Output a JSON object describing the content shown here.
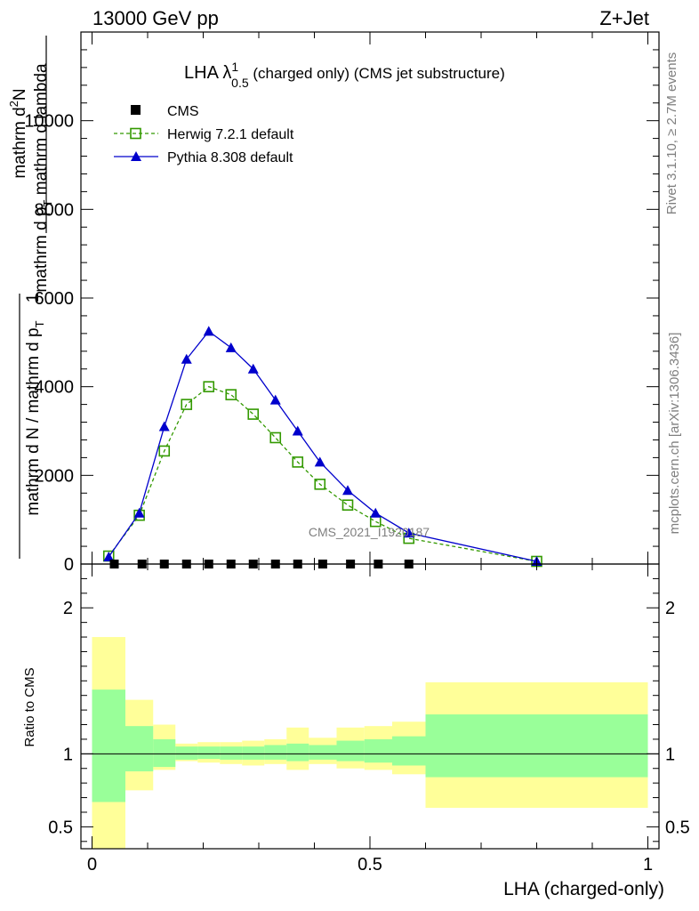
{
  "header": {
    "left": "13000 GeV pp",
    "right": "Z+Jet"
  },
  "main": {
    "title_main": "LHA λ",
    "title_sup": "1",
    "title_sub": "0.5",
    "title_rest": " (charged only) (CMS jet substructure)",
    "ylabel_line1": "mathrm d",
    "ylabel_sup": "2",
    "ylabel_line1b": "N",
    "ylabel_line2": "mathrm d p",
    "ylabel_line2_sub": "T",
    "ylabel_line2b": " mathrm d lambda",
    "ylabel_prefix": "1",
    "ylabel_denom": "mathrm d N / mathrm d p",
    "ylabel_denom_sub": "T"
  },
  "ratio": {
    "ylabel": "Ratio to CMS"
  },
  "xaxis": {
    "label": "LHA (charged-only)"
  },
  "side": {
    "rivet": "Rivet 3.1.10, ≥ 2.7M events",
    "mcplots": "mcplots.cern.ch [arXiv:1306.3436]"
  },
  "watermark": "CMS_2021_I1920187",
  "colors": {
    "herwig": "#339900",
    "pythia": "#0000cc",
    "band_inner": "#99ff99",
    "band_outer": "#ffff99"
  },
  "chart_data": [
    {
      "type": "line",
      "xlim": [
        -0.02,
        1.02
      ],
      "ylim": [
        0,
        12000
      ],
      "yticks": [
        0,
        2000,
        4000,
        6000,
        8000,
        10000
      ],
      "ytick_labels": [
        "0",
        "2000",
        "4000",
        "6000",
        "8000",
        "10000"
      ],
      "legend_position": "top-left",
      "series": [
        {
          "name": "CMS",
          "marker": "square",
          "x": [
            0.04,
            0.09,
            0.13,
            0.17,
            0.21,
            0.25,
            0.29,
            0.33,
            0.37,
            0.415,
            0.465,
            0.515,
            0.57
          ],
          "y": [
            0,
            0,
            0,
            0,
            0,
            0,
            0,
            0,
            0,
            0,
            0,
            0,
            0
          ]
        },
        {
          "name": "Herwig 7.2.1 default",
          "marker": "open-square",
          "style": "dashed",
          "x": [
            0.03,
            0.085,
            0.13,
            0.17,
            0.21,
            0.25,
            0.29,
            0.33,
            0.37,
            0.41,
            0.46,
            0.51,
            0.57,
            0.8
          ],
          "y": [
            180,
            1100,
            2550,
            3600,
            4000,
            3820,
            3380,
            2850,
            2300,
            1800,
            1330,
            960,
            580,
            60
          ]
        },
        {
          "name": "Pythia 8.308 default",
          "marker": "filled-triangle",
          "style": "solid",
          "x": [
            0.03,
            0.085,
            0.13,
            0.17,
            0.21,
            0.25,
            0.29,
            0.33,
            0.37,
            0.41,
            0.46,
            0.51,
            0.57,
            0.8
          ],
          "y": [
            160,
            1150,
            3100,
            4620,
            5250,
            4880,
            4400,
            3700,
            3000,
            2300,
            1660,
            1150,
            700,
            60
          ]
        }
      ]
    },
    {
      "type": "area",
      "xlim": [
        -0.02,
        1.02
      ],
      "ylim": [
        0.35,
        2.3
      ],
      "yticks": [
        0.5,
        1,
        2
      ],
      "ytick_labels": [
        "0.5",
        "1",
        "2"
      ],
      "xticks": [
        0,
        0.5,
        1
      ],
      "xtick_labels": [
        "0",
        "0.5",
        "1"
      ],
      "reference_line": 1,
      "bins": [
        {
          "x0": 0.0,
          "x1": 0.06,
          "inner": [
            0.67,
            1.44
          ],
          "outer": [
            0.33,
            1.8
          ]
        },
        {
          "x0": 0.06,
          "x1": 0.11,
          "inner": [
            0.88,
            1.19
          ],
          "outer": [
            0.75,
            1.37
          ]
        },
        {
          "x0": 0.11,
          "x1": 0.15,
          "inner": [
            0.91,
            1.1
          ],
          "outer": [
            0.89,
            1.2
          ]
        },
        {
          "x0": 0.15,
          "x1": 0.19,
          "inner": [
            0.96,
            1.05
          ],
          "outer": [
            0.95,
            1.07
          ]
        },
        {
          "x0": 0.19,
          "x1": 0.23,
          "inner": [
            0.965,
            1.05
          ],
          "outer": [
            0.94,
            1.08
          ]
        },
        {
          "x0": 0.23,
          "x1": 0.27,
          "inner": [
            0.96,
            1.05
          ],
          "outer": [
            0.93,
            1.08
          ]
        },
        {
          "x0": 0.27,
          "x1": 0.31,
          "inner": [
            0.96,
            1.05
          ],
          "outer": [
            0.92,
            1.09
          ]
        },
        {
          "x0": 0.31,
          "x1": 0.35,
          "inner": [
            0.96,
            1.06
          ],
          "outer": [
            0.93,
            1.1
          ]
        },
        {
          "x0": 0.35,
          "x1": 0.39,
          "inner": [
            0.95,
            1.07
          ],
          "outer": [
            0.89,
            1.18
          ]
        },
        {
          "x0": 0.39,
          "x1": 0.44,
          "inner": [
            0.96,
            1.06
          ],
          "outer": [
            0.93,
            1.11
          ]
        },
        {
          "x0": 0.44,
          "x1": 0.49,
          "inner": [
            0.95,
            1.09
          ],
          "outer": [
            0.9,
            1.18
          ]
        },
        {
          "x0": 0.49,
          "x1": 0.54,
          "inner": [
            0.94,
            1.1
          ],
          "outer": [
            0.89,
            1.19
          ]
        },
        {
          "x0": 0.54,
          "x1": 0.6,
          "inner": [
            0.92,
            1.12
          ],
          "outer": [
            0.86,
            1.22
          ]
        },
        {
          "x0": 0.6,
          "x1": 1.0,
          "inner": [
            0.84,
            1.27
          ],
          "outer": [
            0.63,
            1.49
          ]
        }
      ]
    }
  ]
}
